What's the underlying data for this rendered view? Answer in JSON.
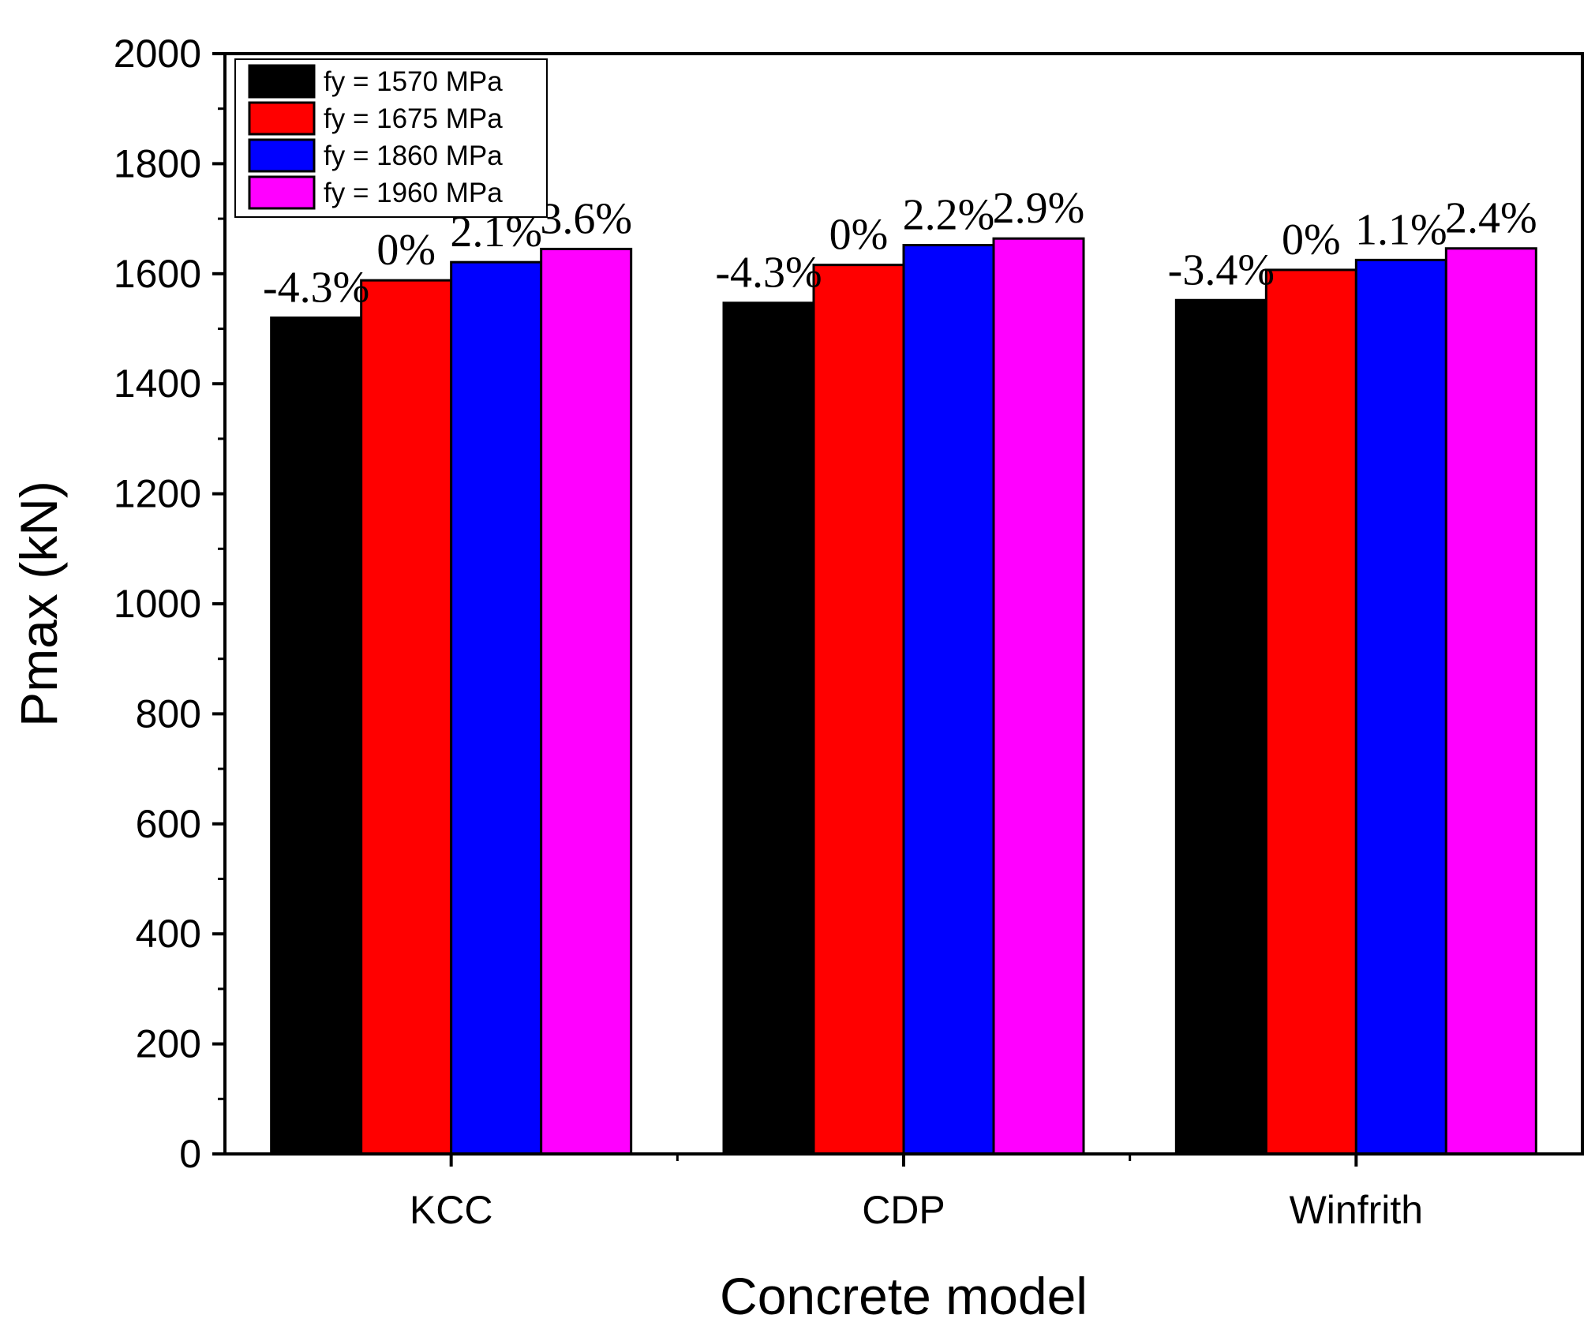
{
  "chart_data": {
    "type": "bar",
    "title": "",
    "xlabel": "Concrete model",
    "ylabel": "Pmax (kN)",
    "ylim": [
      0,
      2000
    ],
    "yticks": [
      0,
      200,
      400,
      600,
      800,
      1000,
      1200,
      1400,
      1600,
      1800,
      2000
    ],
    "grid": false,
    "legend_position": "top-left",
    "categories": [
      "KCC",
      "CDP",
      "Winfrith"
    ],
    "series": [
      {
        "name": "fy = 1570 MPa",
        "color": "#000000",
        "values": [
          1520,
          1547,
          1552
        ],
        "labels": [
          "-4.3%",
          "-4.3%",
          "-3.4%"
        ]
      },
      {
        "name": "fy = 1675 MPa",
        "color": "#ff0000",
        "values": [
          1588,
          1616,
          1607
        ],
        "labels": [
          "0%",
          "0%",
          "0%"
        ]
      },
      {
        "name": "fy = 1860 MPa",
        "color": "#0000ff",
        "values": [
          1621,
          1652,
          1625
        ],
        "labels": [
          "2.1%",
          "2.2%",
          "1.1%"
        ]
      },
      {
        "name": "fy = 1960 MPa",
        "color": "#ff00ff",
        "values": [
          1645,
          1664,
          1646
        ],
        "labels": [
          "3.6%",
          "2.9%",
          "2.4%"
        ]
      }
    ]
  }
}
